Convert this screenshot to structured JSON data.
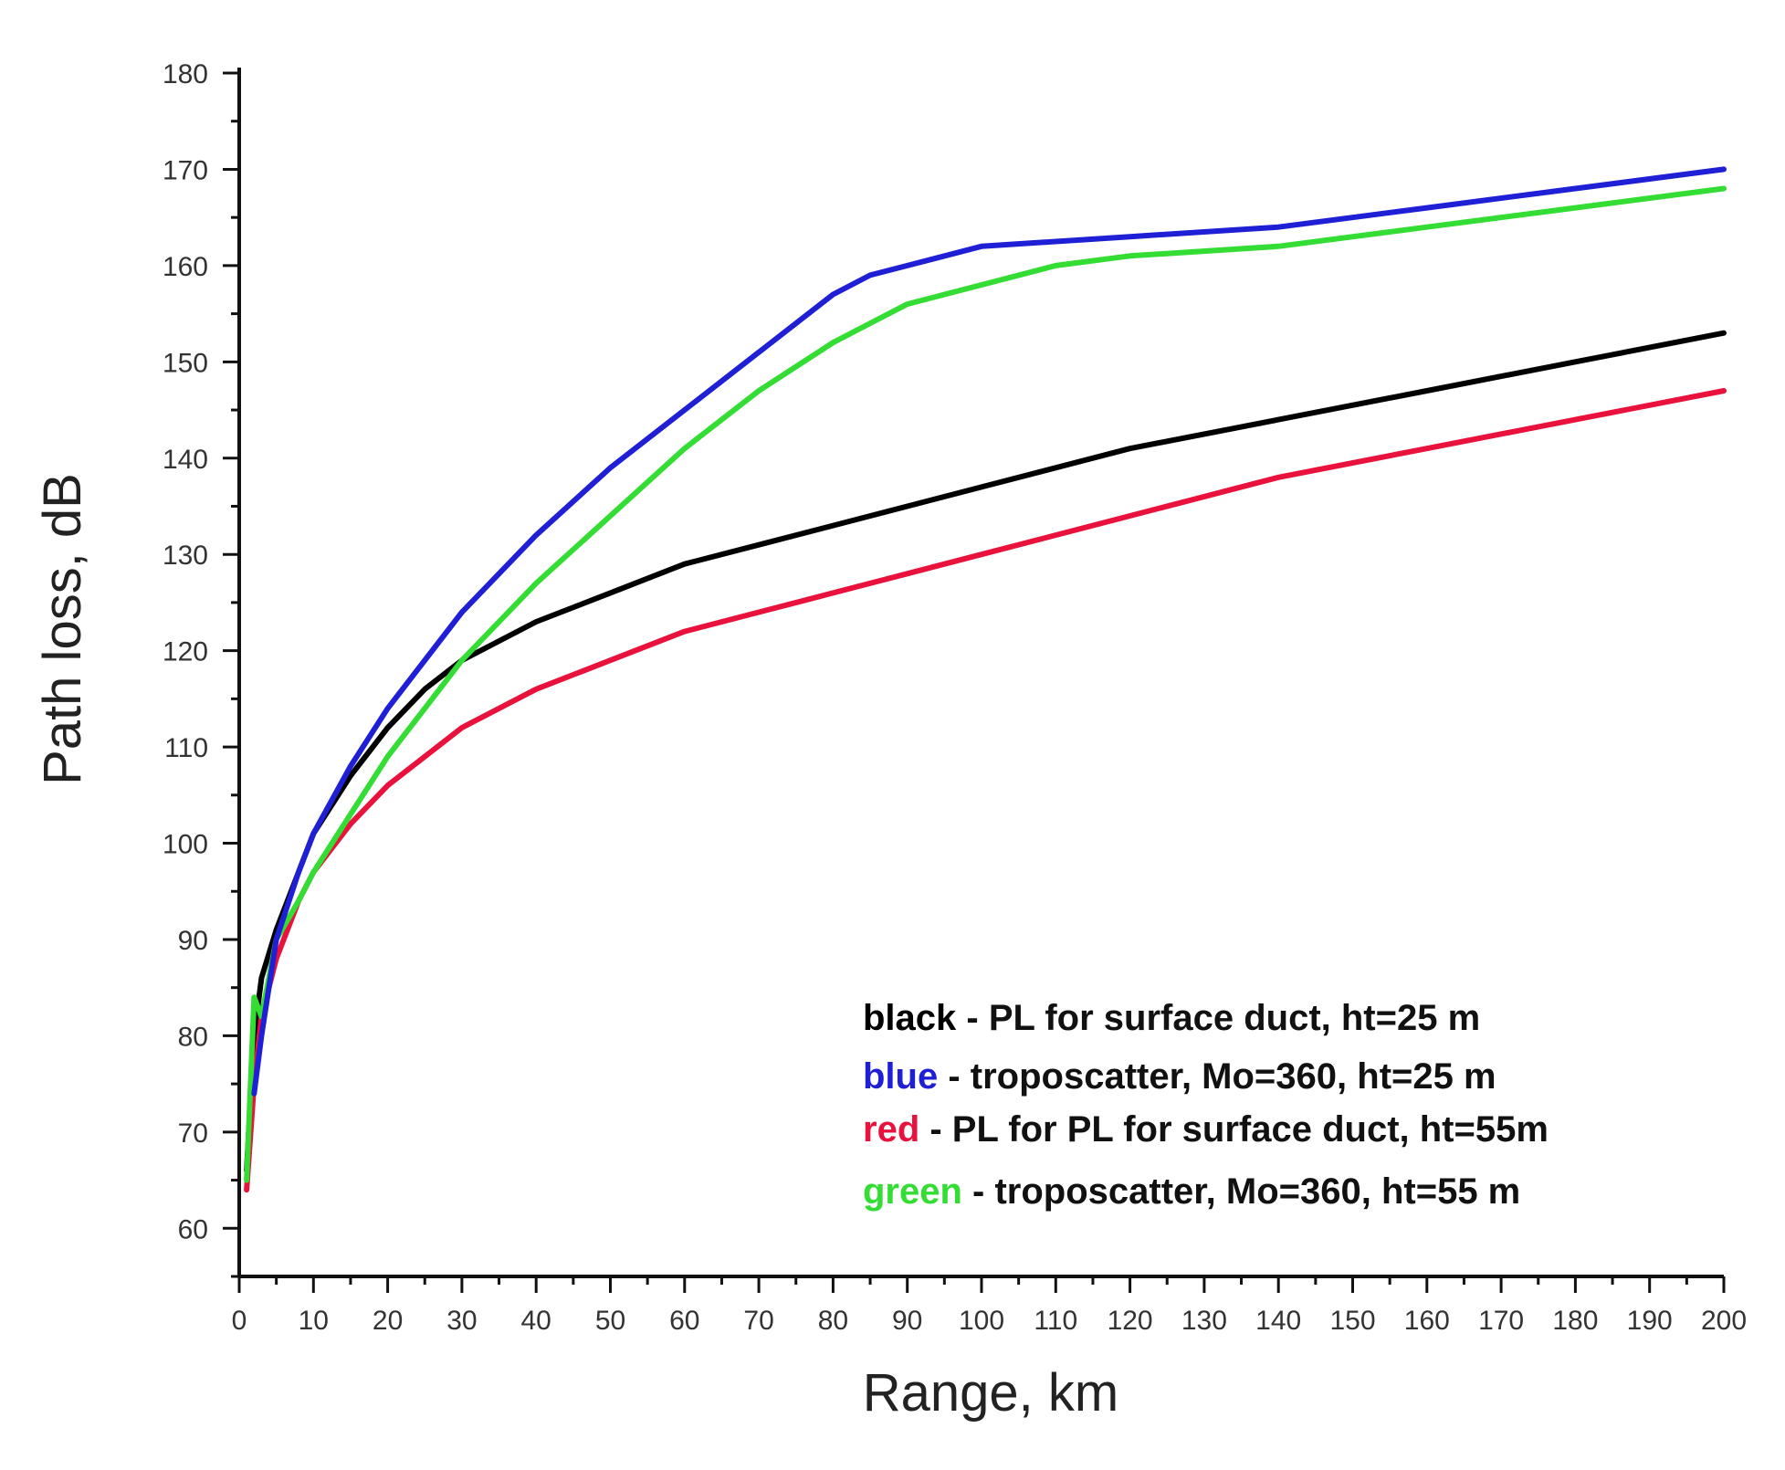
{
  "chart_data": {
    "type": "line",
    "title": "",
    "xlabel": "Range, km",
    "ylabel": "Path loss, dB",
    "xlim": [
      0,
      200
    ],
    "ylim": [
      55,
      180
    ],
    "xticks": [
      0,
      10,
      20,
      30,
      40,
      50,
      60,
      70,
      80,
      90,
      100,
      110,
      120,
      130,
      140,
      150,
      160,
      170,
      180,
      190,
      200
    ],
    "yticks": [
      60,
      70,
      80,
      90,
      100,
      110,
      120,
      130,
      140,
      150,
      160,
      170,
      180
    ],
    "grid": false,
    "legend_position": "bottom-right",
    "series": [
      {
        "color": "#000000",
        "x": [
          1,
          2,
          3,
          5,
          8,
          10,
          15,
          20,
          25,
          30,
          35,
          40,
          50,
          60,
          70,
          80,
          90,
          100,
          120,
          140,
          160,
          180,
          200
        ],
        "values": [
          66,
          80,
          86,
          91,
          97,
          101,
          107,
          112,
          116,
          119,
          121,
          123,
          126,
          129,
          131,
          133,
          135,
          137,
          141,
          144,
          147,
          150,
          153
        ]
      },
      {
        "color": "#1f1fd6",
        "x": [
          2,
          3,
          5,
          8,
          10,
          15,
          20,
          30,
          40,
          50,
          60,
          70,
          80,
          85,
          90,
          100,
          120,
          140,
          160,
          180,
          200
        ],
        "values": [
          74,
          80,
          90,
          97,
          101,
          108,
          114,
          124,
          132,
          139,
          145,
          151,
          157,
          159,
          160,
          162,
          163,
          164,
          166,
          168,
          170
        ]
      },
      {
        "color": "#e8123c",
        "x": [
          1,
          2,
          3,
          5,
          8,
          10,
          15,
          20,
          25,
          30,
          40,
          50,
          60,
          70,
          80,
          90,
          100,
          120,
          140,
          160,
          180,
          200
        ],
        "values": [
          64,
          75,
          82,
          88,
          94,
          97,
          102,
          106,
          109,
          112,
          116,
          119,
          122,
          124,
          126,
          128,
          130,
          134,
          138,
          141,
          144,
          147
        ]
      },
      {
        "color": "#33dd33",
        "x": [
          1,
          2,
          3,
          5,
          8,
          10,
          15,
          20,
          30,
          40,
          50,
          60,
          70,
          80,
          85,
          90,
          100,
          110,
          120,
          140,
          160,
          180,
          200
        ],
        "values": [
          65,
          84,
          82,
          90,
          94,
          97,
          103,
          109,
          119,
          127,
          134,
          141,
          147,
          152,
          154,
          156,
          158,
          160,
          161,
          162,
          164,
          166,
          168
        ]
      }
    ],
    "legend": [
      {
        "color_word": "black",
        "color": "#000000",
        "text": " - PL for surface duct, ht=25 m"
      },
      {
        "color_word": "blue",
        "color": "#1f1fd6",
        "text": " - troposcatter, Mo=360, ht=25 m"
      },
      {
        "color_word": "red",
        "color": "#e8123c",
        "text": " - PL for PL for surface duct, ht=55m"
      },
      {
        "color_word": "green",
        "color": "#33dd33",
        "text": " - troposcatter, Mo=360, ht=55 m"
      }
    ]
  }
}
